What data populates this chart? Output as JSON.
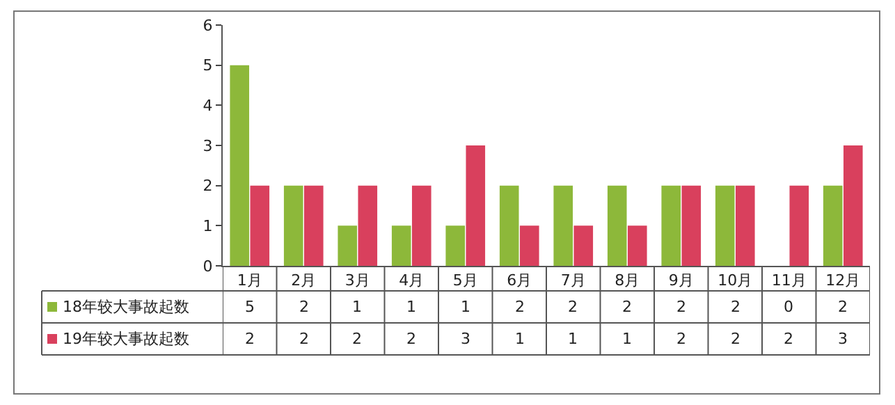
{
  "chart_data": {
    "type": "bar",
    "categories": [
      "1月",
      "2月",
      "3月",
      "4月",
      "5月",
      "6月",
      "7月",
      "8月",
      "9月",
      "10月",
      "11月",
      "12月"
    ],
    "series": [
      {
        "name": "18年较大事故起数",
        "color": "#8db83a",
        "values": [
          5,
          2,
          1,
          1,
          1,
          2,
          2,
          2,
          2,
          2,
          0,
          2
        ]
      },
      {
        "name": "19年较大事故起数",
        "color": "#d9405d",
        "values": [
          2,
          2,
          2,
          2,
          3,
          1,
          1,
          1,
          2,
          2,
          2,
          3
        ]
      }
    ],
    "ylim": [
      0,
      6
    ],
    "yticks": [
      0,
      1,
      2,
      3,
      4,
      5,
      6
    ],
    "legend": "bottom left",
    "data_labels": true
  }
}
